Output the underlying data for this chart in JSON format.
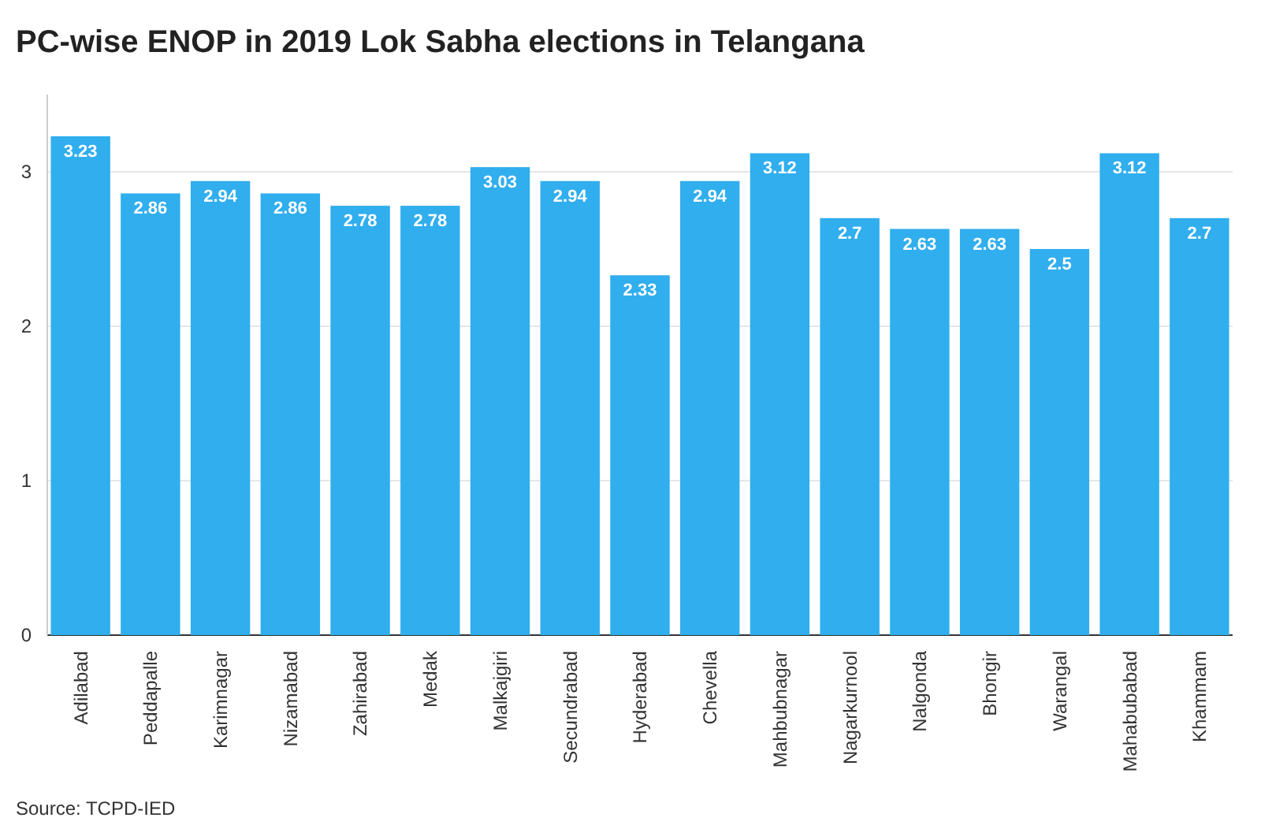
{
  "chart_data": {
    "type": "bar",
    "title": "PC-wise ENOP in 2019 Lok Sabha elections in Telangana",
    "categories": [
      "Adilabad",
      "Peddapalle",
      "Karimnagar",
      "Nizamabad",
      "Zahirabad",
      "Medak",
      "Malkajgiri",
      "Secundrabad",
      "Hyderabad",
      "Chevella",
      "Mahbubnagar",
      "Nagarkurnool",
      "Nalgonda",
      "Bhongir",
      "Warangal",
      "Mahabubabad",
      "Khammam"
    ],
    "values": [
      3.23,
      2.86,
      2.94,
      2.86,
      2.78,
      2.78,
      3.03,
      2.94,
      2.33,
      2.94,
      3.12,
      2.7,
      2.63,
      2.63,
      2.5,
      3.12,
      2.7
    ],
    "color": "#30aeee",
    "ylim": [
      0,
      3.5
    ],
    "yticks": [
      0,
      1,
      2,
      3
    ],
    "grid": "y",
    "data_labels": true,
    "annotations": [
      "Source: TCPD-IED"
    ]
  }
}
